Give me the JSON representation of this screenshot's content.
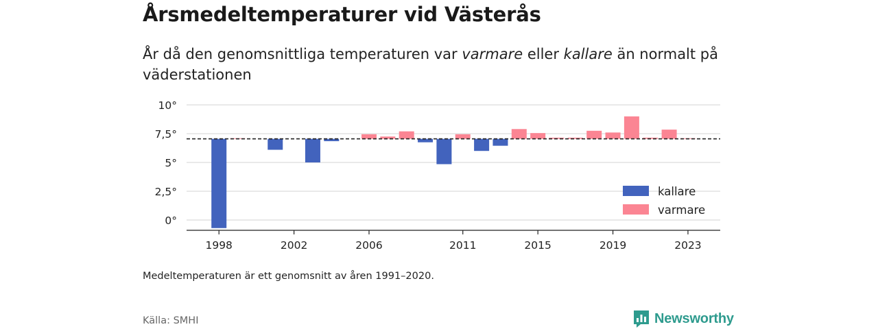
{
  "title": "Årsmedeltemperaturer vid Västerås",
  "subtitle": {
    "part1": "År då den genomsnittliga temperaturen var ",
    "warm_word": "varmare",
    "part2": " eller ",
    "cold_word": "kallare",
    "part3": " än normalt på väderstationen"
  },
  "note": "Medeltemperaturen är ett genomsnitt av åren 1991–2020.",
  "source": "Källa: SMHI",
  "brand": "Newsworthy",
  "colors": {
    "colder": "#4263bd",
    "warmer": "#fb8593",
    "brand": "#2e9b8e"
  },
  "chart_data": {
    "type": "bar",
    "baseline": 7.05,
    "ylim": [
      -0.8,
      10
    ],
    "yticks": [
      {
        "value": 0,
        "label": "0°"
      },
      {
        "value": 2.5,
        "label": "2,5°"
      },
      {
        "value": 5,
        "label": "5°"
      },
      {
        "value": 7.5,
        "label": "7,5°"
      },
      {
        "value": 10,
        "label": "10°"
      }
    ],
    "xticks": [
      1998,
      2002,
      2006,
      2011,
      2015,
      2019,
      2023
    ],
    "grid": true,
    "legend_position": "bottom-right",
    "legend": [
      {
        "key": "colder",
        "label": "kallare"
      },
      {
        "key": "warmer",
        "label": "varmare"
      }
    ],
    "years": [
      1998,
      1999,
      2000,
      2001,
      2002,
      2003,
      2004,
      2005,
      2006,
      2007,
      2008,
      2009,
      2010,
      2011,
      2012,
      2013,
      2014,
      2015,
      2016,
      2017,
      2018,
      2019,
      2020,
      2021,
      2022,
      2023
    ],
    "values": [
      -0.7,
      7.1,
      null,
      6.1,
      null,
      5.0,
      6.85,
      null,
      7.45,
      7.25,
      7.7,
      6.75,
      4.85,
      7.45,
      6.0,
      6.45,
      7.9,
      7.55,
      7.15,
      7.15,
      7.75,
      7.6,
      9.0,
      7.15,
      7.85,
      7.1
    ]
  }
}
